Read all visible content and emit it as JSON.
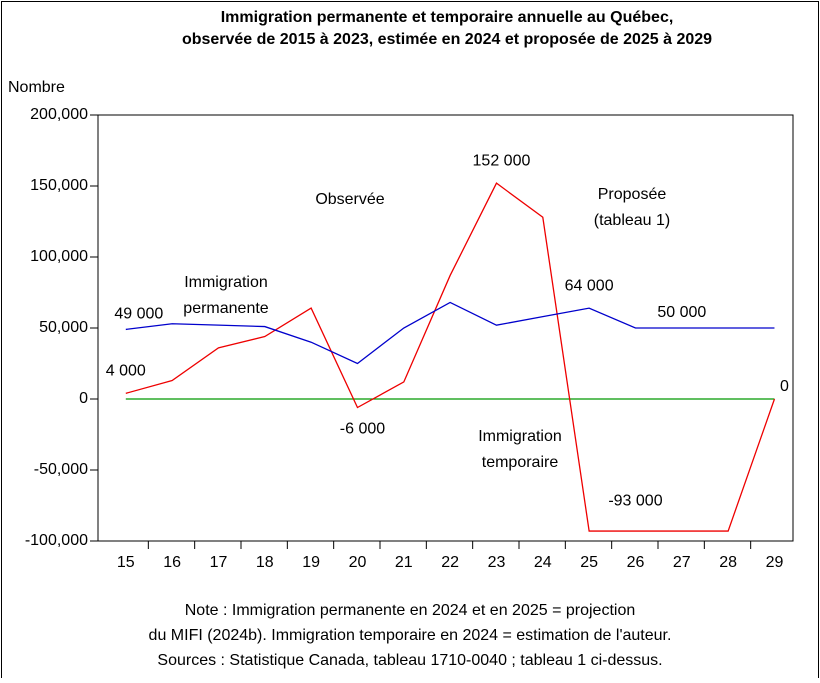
{
  "chart_data": {
    "type": "line",
    "title": [
      "Immigration permanente et temporaire annuelle au Québec,",
      "observée de 2015 à 2023, estimée en 2024 et proposée de 2025 à 2029"
    ],
    "ylabel": "Nombre",
    "categories": [
      "15",
      "16",
      "17",
      "18",
      "19",
      "20",
      "21",
      "22",
      "23",
      "24",
      "25",
      "26",
      "27",
      "28",
      "29"
    ],
    "series": [
      {
        "color": "#0000cc",
        "values": [
          49000,
          53000,
          52000,
          51000,
          40000,
          25000,
          50000,
          68000,
          52000,
          58000,
          64000,
          50000,
          50000,
          50000,
          50000
        ],
        "value_labels": [
          "49 000",
          null,
          null,
          null,
          null,
          null,
          null,
          null,
          null,
          null,
          "64 000",
          null,
          "50 000",
          null,
          null
        ]
      },
      {
        "color": "#ee0000",
        "values": [
          4000,
          13000,
          36000,
          44000,
          64000,
          -6000,
          12000,
          87000,
          152000,
          128000,
          -93000,
          -93000,
          -93000,
          -93000,
          0
        ],
        "value_labels": [
          "4 000",
          null,
          null,
          null,
          null,
          "-6 000",
          null,
          null,
          "152 000",
          null,
          null,
          "-93 000",
          null,
          null,
          "0"
        ]
      },
      {
        "color": "#009900",
        "values": [
          0,
          0,
          0,
          0,
          0,
          0,
          0,
          0,
          0,
          0,
          0,
          0,
          0,
          0,
          0
        ]
      }
    ],
    "ylim": [
      -100000,
      200000
    ],
    "yticks": [
      {
        "value": -100000,
        "label": "-100,000"
      },
      {
        "value": -50000,
        "label": "-50,000"
      },
      0,
      {
        "value": 50000,
        "label": "50,000"
      },
      {
        "value": 100000,
        "label": "100,000"
      },
      {
        "value": 150000,
        "label": "150,000"
      },
      {
        "value": 200000,
        "label": "200,000"
      }
    ],
    "annotations": [
      {
        "lines": [
          "Observée"
        ]
      },
      {
        "lines": [
          "Proposée",
          "(tableau 1)"
        ]
      },
      {
        "lines": [
          "Immigration",
          "permanente"
        ]
      },
      {
        "lines": [
          "Immigration",
          "temporaire"
        ]
      }
    ],
    "note": [
      "Note : Immigration permanente en 2024 et en 2025 = projection",
      "du MIFI (2024b). Immigration temporaire en 2024 = estimation de l'auteur.",
      "Sources : Statistique Canada, tableau 1710-0040 ; tableau 1 ci-dessus."
    ]
  }
}
